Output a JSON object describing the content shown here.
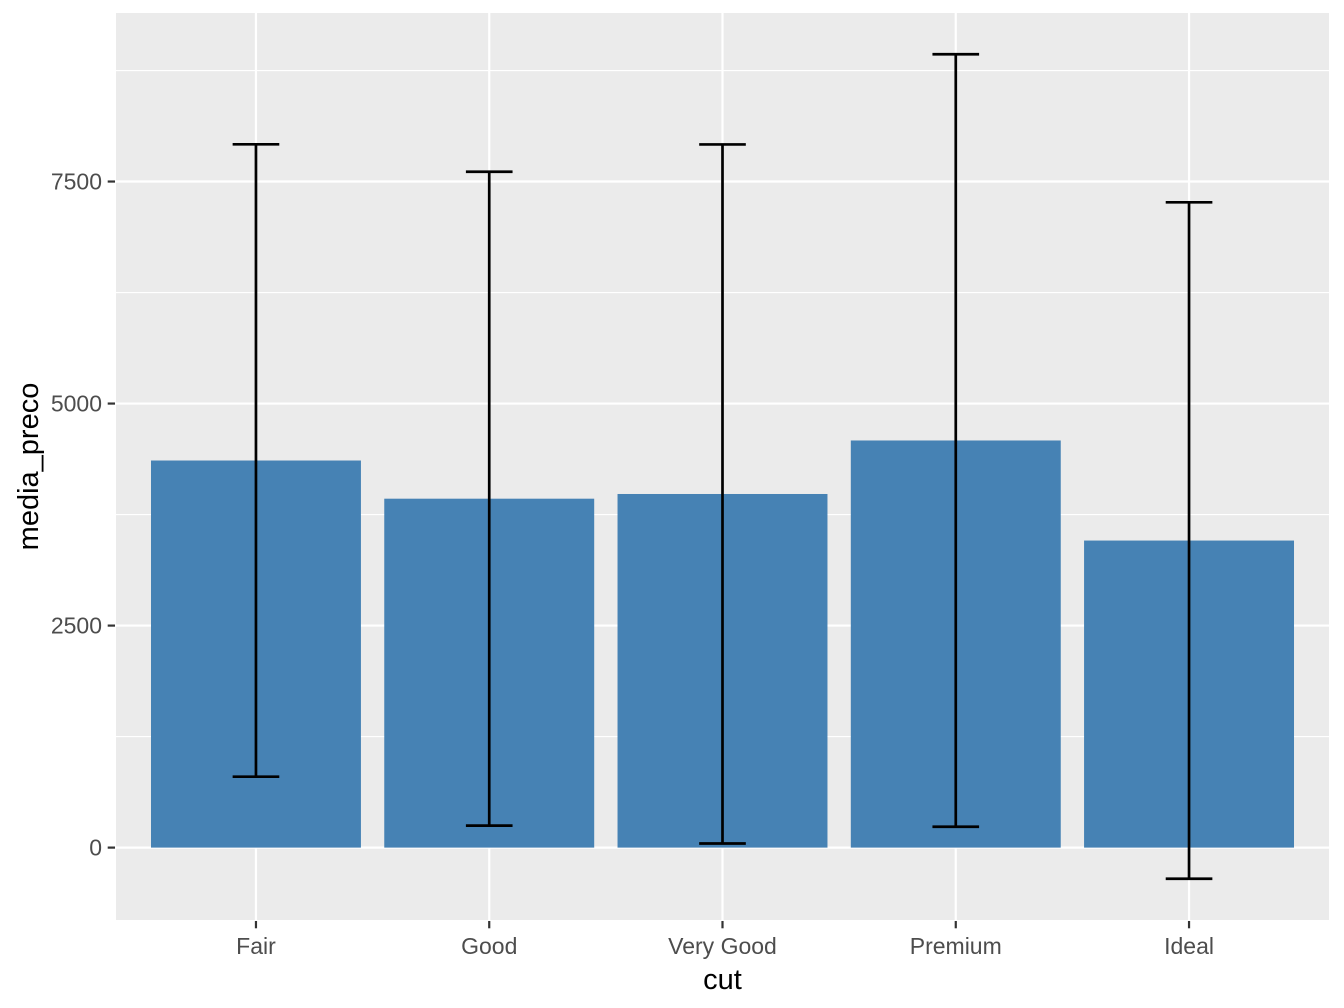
{
  "figure": {
    "background_color": "#FFFFFF"
  },
  "chart_data": {
    "type": "bar",
    "title": "",
    "xlabel": "cut",
    "ylabel": "media_preco",
    "categories": [
      "Fair",
      "Good",
      "Very Good",
      "Premium",
      "Ideal"
    ],
    "series": [
      {
        "name": "media_preco",
        "values": [
          4358.76,
          3928.86,
          3981.76,
          4584.26,
          3457.54
        ]
      }
    ],
    "error_bars": {
      "kind": "mean plus-minus sd",
      "sd": [
        3560.39,
        3681.59,
        3935.86,
        4349.19,
        3808.4
      ],
      "upper": [
        7919.15,
        7610.45,
        7917.62,
        8933.46,
        7265.94
      ],
      "lower": [
        798.37,
        247.27,
        45.9,
        235.06,
        -350.86
      ],
      "cap_width_fraction": 0.2
    },
    "y_axis": {
      "tick_values": [
        0,
        2500,
        5000,
        7500
      ],
      "tick_labels": [
        "0",
        "2500",
        "5000",
        "7500"
      ],
      "minor_tick_values": [
        1250,
        3750,
        6250,
        8750
      ],
      "ylim": [
        -815.08,
        9397.68
      ]
    },
    "x_axis": {
      "tick_labels": [
        "Fair",
        "Good",
        "Very Good",
        "Premium",
        "Ideal"
      ]
    },
    "grid": true,
    "legend": false,
    "bar_width_fraction": 0.9,
    "colors": {
      "bar_fill": "#4682B4",
      "panel_background": "#EBEBEB",
      "grid_line": "#FFFFFF",
      "error_bar": "#000000",
      "axis_text": "#4D4D4D",
      "axis_title": "#000000",
      "tick_mark": "#333333",
      "figure_background": "#FFFFFF"
    }
  }
}
